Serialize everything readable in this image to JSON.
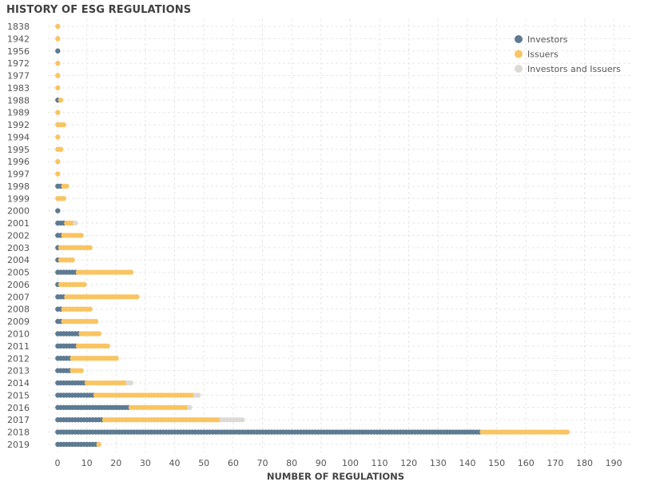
{
  "chart_data": {
    "type": "dot-strip",
    "title": "HISTORY OF ESG REGULATIONS",
    "xlabel": "NUMBER OF REGULATIONS",
    "ylabel": "",
    "xlim": [
      0,
      195
    ],
    "xticks": [
      0,
      10,
      20,
      30,
      40,
      50,
      60,
      70,
      80,
      90,
      100,
      110,
      120,
      130,
      140,
      150,
      160,
      170,
      180,
      190
    ],
    "categories": [
      "1838",
      "1942",
      "1956",
      "1972",
      "1977",
      "1983",
      "1988",
      "1989",
      "1992",
      "1994",
      "1995",
      "1996",
      "1997",
      "1998",
      "1999",
      "2000",
      "2001",
      "2002",
      "2003",
      "2004",
      "2005",
      "2006",
      "2007",
      "2008",
      "2009",
      "2010",
      "2011",
      "2012",
      "2013",
      "2014",
      "2015",
      "2016",
      "2017",
      "2018",
      "2019"
    ],
    "series": [
      {
        "name": "Investors",
        "color": "#5d7a93",
        "values": [
          0,
          0,
          1,
          0,
          0,
          0,
          1,
          0,
          0,
          0,
          0,
          0,
          0,
          2,
          0,
          1,
          3,
          2,
          1,
          1,
          7,
          1,
          3,
          2,
          2,
          8,
          7,
          5,
          5,
          10,
          13,
          25,
          16,
          145,
          14
        ]
      },
      {
        "name": "Issuers",
        "color": "#f9c461",
        "values": [
          1,
          1,
          0,
          1,
          1,
          1,
          1,
          1,
          3,
          1,
          2,
          1,
          1,
          2,
          3,
          0,
          3,
          7,
          11,
          5,
          19,
          9,
          25,
          10,
          12,
          7,
          11,
          16,
          4,
          14,
          34,
          20,
          40,
          30,
          1
        ]
      },
      {
        "name": "Investors and Issuers",
        "color": "#dddad6",
        "values": [
          0,
          0,
          0,
          0,
          0,
          0,
          0,
          0,
          0,
          0,
          0,
          0,
          0,
          0,
          0,
          0,
          1,
          0,
          0,
          0,
          0,
          0,
          0,
          0,
          0,
          0,
          0,
          0,
          0,
          2,
          2,
          1,
          8,
          0,
          0
        ]
      }
    ],
    "legend_position": "top-right",
    "grid": true
  }
}
